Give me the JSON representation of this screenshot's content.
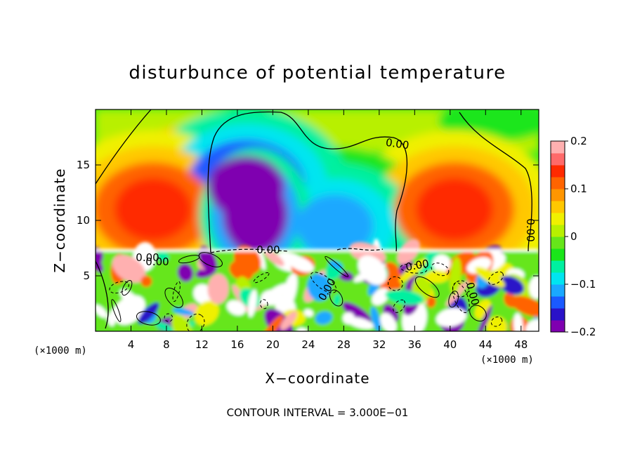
{
  "chart_data": {
    "type": "heatmap",
    "title": "disturbunce of potential temperature",
    "xlabel": "X−coordinate",
    "ylabel": "Z−coordinate",
    "x_unit_left": "(×1000 m)",
    "x_unit_right": "(×1000 m)",
    "xlim": [
      0,
      50
    ],
    "ylim": [
      0,
      20
    ],
    "x_ticks": [
      4,
      8,
      12,
      16,
      20,
      24,
      28,
      32,
      36,
      40,
      44,
      48
    ],
    "y_ticks": [
      5,
      10,
      15
    ],
    "colorbar": {
      "range": [
        -0.2,
        0.2
      ],
      "ticks": [
        "0.2",
        "0.1",
        "0",
        "−0.1",
        "−0.2"
      ],
      "colors": [
        "#7f00b0",
        "#2a12c8",
        "#1a5aff",
        "#1aa8ff",
        "#00e5f0",
        "#00f0a0",
        "#1ae61a",
        "#66e61a",
        "#b8f000",
        "#f0f000",
        "#ffc800",
        "#ff9600",
        "#ff6400",
        "#ff2a00",
        "#ff6a6a",
        "#ffb0b0"
      ],
      "over_color": "#ffffff"
    },
    "contour_labels": [
      "0.00",
      "0.00",
      "0.00",
      "0.00",
      "0.00",
      "0.00",
      "0.00",
      "0.00"
    ],
    "contour_interval_label": "CONTOUR INTERVAL = 3.000E−01",
    "upper_features": [
      {
        "x": 6.5,
        "z": 11,
        "value": 0.14,
        "desc": "warm"
      },
      {
        "x": 18,
        "z": 10.5,
        "value": -0.25,
        "desc": "cold core"
      },
      {
        "x": 17,
        "z": 13,
        "value": -0.18,
        "desc": "cold"
      },
      {
        "x": 27,
        "z": 9.5,
        "value": -0.12,
        "desc": "cold"
      },
      {
        "x": 40.5,
        "z": 11,
        "value": 0.14,
        "desc": "warm"
      }
    ]
  }
}
